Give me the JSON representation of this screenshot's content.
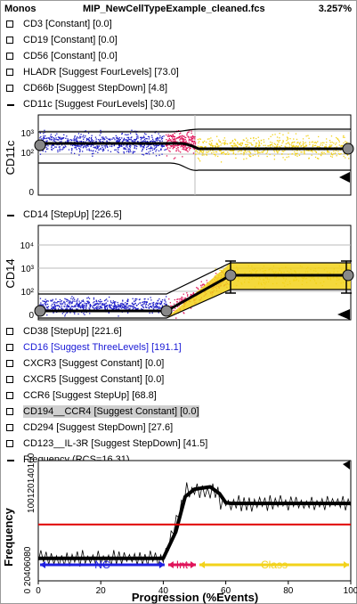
{
  "header": {
    "panel": "Monos",
    "filename": "MIP_NewCellTypeExample_cleaned.fcs",
    "percent": "3.257%"
  },
  "markers_top": [
    {
      "label": "CD3 [Constant] [0.0]",
      "state": "box"
    },
    {
      "label": "CD19 [Constant] [0.0]",
      "state": "box"
    },
    {
      "label": "CD56 [Constant] [0.0]",
      "state": "box"
    },
    {
      "label": "HLADR [Suggest FourLevels] [73.0]",
      "state": "box"
    },
    {
      "label": "CD66b [Suggest StepDown] [4.8]",
      "state": "box"
    },
    {
      "label": "CD11c [Suggest FourLevels] [30.0]",
      "state": "dash"
    }
  ],
  "cd11c_plot": {
    "ylabel": "CD11c",
    "ticks": [
      "10³",
      "10²",
      "0"
    ]
  },
  "cd14_row": {
    "label": "CD14 [StepUp] [226.5]"
  },
  "cd14_plot": {
    "ylabel": "CD14",
    "ticks": [
      "10⁴",
      "10³",
      "10²",
      "0"
    ]
  },
  "markers_bottom": [
    {
      "label": "CD38 [StepUp] [221.6]",
      "state": "box"
    },
    {
      "label": "CD16 [Suggest ThreeLevels] [191.1]",
      "state": "box",
      "color": "blue"
    },
    {
      "label": "CXCR3 [Suggest Constant] [0.0]",
      "state": "box"
    },
    {
      "label": "CXCR5 [Suggest Constant] [0.0]",
      "state": "box"
    },
    {
      "label": "CCR6 [Suggest StepUp] [68.8]",
      "state": "box"
    },
    {
      "label": "CD194__CCR4 [Suggest Constant] [0.0]",
      "state": "box",
      "selected": true
    },
    {
      "label": "CD294 [Suggest StepDown] [27.6]",
      "state": "box"
    },
    {
      "label": "CD123__IL-3R [Suggest StepDown] [41.5]",
      "state": "box"
    },
    {
      "label": "Frequency (RCS=16.31)",
      "state": "dash"
    }
  ],
  "chart_data": {
    "type": "line",
    "ylabel": "Frequency",
    "xlabel": "Progression (%Events)",
    "xlim": [
      0,
      100
    ],
    "ylim": [
      0,
      160
    ],
    "yticks_label": "0 20406080",
    "yticks_upper": [
      "100",
      "120",
      "140",
      "160"
    ],
    "xticks": [
      "0",
      "20",
      "40",
      "60",
      "80",
      "100"
    ],
    "smooth": {
      "x": [
        0,
        40,
        44,
        47,
        50,
        55,
        58,
        60,
        62,
        70,
        80,
        90,
        100
      ],
      "y": [
        30,
        30,
        65,
        112,
        122,
        125,
        116,
        104,
        103,
        103,
        103,
        103,
        103
      ]
    },
    "reference_y": 75,
    "regions": [
      {
        "name": "NC",
        "from": 0,
        "to": 41
      },
      {
        "name": "Int",
        "from": 41,
        "to": 51
      },
      {
        "name": "Class",
        "from": 51,
        "to": 100
      }
    ]
  }
}
